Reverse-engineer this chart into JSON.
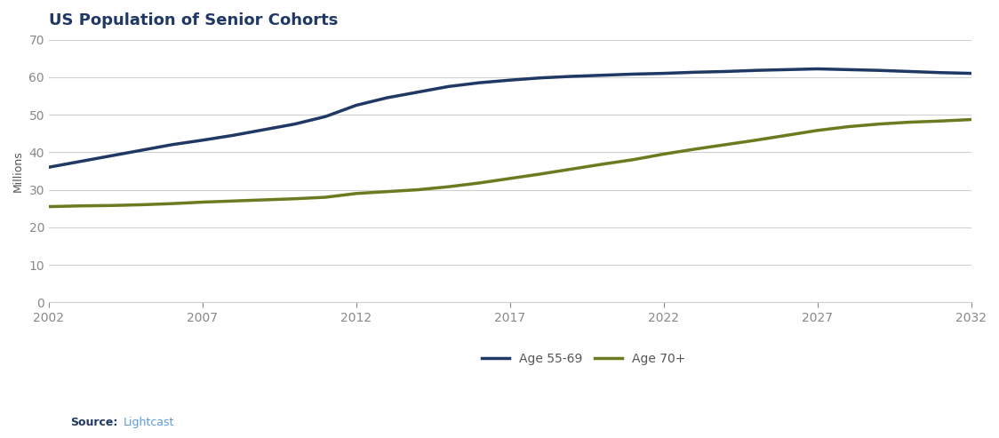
{
  "title": "US Population of Senior Cohorts",
  "ylabel": "Millions",
  "source_label": "Source:",
  "source_value": "Lightcast",
  "source_color": "#5b9bd5",
  "background_color": "#ffffff",
  "plot_bg_color": "#ffffff",
  "title_color": "#1f3864",
  "title_fontsize": 13,
  "ylabel_fontsize": 9,
  "axis_label_color": "#555555",
  "years": [
    2002,
    2003,
    2004,
    2005,
    2006,
    2007,
    2008,
    2009,
    2010,
    2011,
    2012,
    2013,
    2014,
    2015,
    2016,
    2017,
    2018,
    2019,
    2020,
    2021,
    2022,
    2023,
    2024,
    2025,
    2026,
    2027,
    2028,
    2029,
    2030,
    2031,
    2032
  ],
  "age_55_69": [
    36.0,
    37.5,
    39.0,
    40.5,
    42.0,
    43.2,
    44.5,
    46.0,
    47.5,
    49.5,
    52.5,
    54.5,
    56.0,
    57.5,
    58.5,
    59.2,
    59.8,
    60.2,
    60.5,
    60.8,
    61.0,
    61.3,
    61.5,
    61.8,
    62.0,
    62.2,
    62.0,
    61.8,
    61.5,
    61.2,
    61.0
  ],
  "age_70_plus": [
    25.5,
    25.7,
    25.8,
    26.0,
    26.3,
    26.7,
    27.0,
    27.3,
    27.6,
    28.0,
    29.0,
    29.5,
    30.0,
    30.8,
    31.8,
    33.0,
    34.2,
    35.5,
    36.8,
    38.0,
    39.5,
    40.8,
    42.0,
    43.2,
    44.5,
    45.8,
    46.8,
    47.5,
    48.0,
    48.3,
    48.7
  ],
  "line_color_55_69": "#1f3864",
  "line_color_70_plus": "#6d7a1f",
  "line_width": 2.5,
  "xlim": [
    2002,
    2032
  ],
  "ylim": [
    0,
    70
  ],
  "yticks": [
    0,
    10,
    20,
    30,
    40,
    50,
    60,
    70
  ],
  "xticks": [
    2002,
    2007,
    2012,
    2017,
    2022,
    2027,
    2032
  ],
  "legend_label_55_69": "Age 55-69",
  "legend_label_70_plus": "Age 70+",
  "grid_color": "#d0d0d0",
  "tick_color": "#888888",
  "source_bold_color": "#1f3864"
}
